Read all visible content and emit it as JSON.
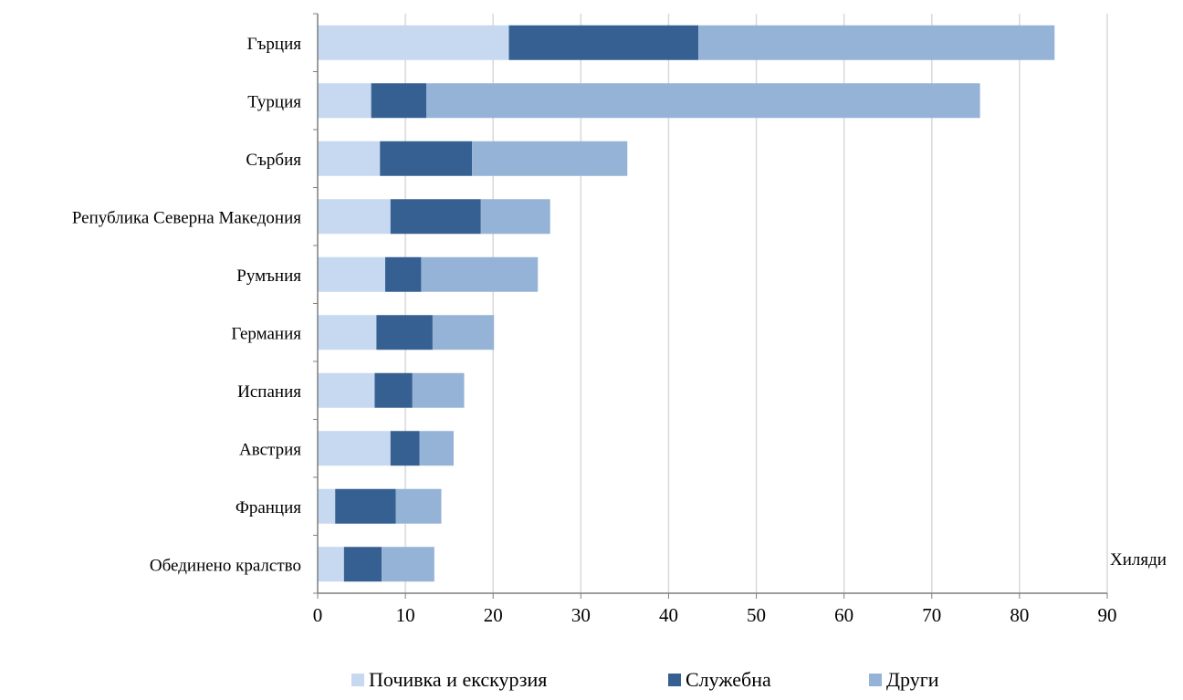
{
  "chart_data": {
    "type": "bar",
    "orientation": "horizontal",
    "stacked": true,
    "categories": [
      "Гърция",
      "Турция",
      "Сърбия",
      "Република Северна Македония",
      "Румъния",
      "Германия",
      "Испания",
      "Австрия",
      "Франция",
      "Обединено  кралство"
    ],
    "series": [
      {
        "name": "Почивка и екскурзия",
        "color": "#c6d9f0",
        "values": [
          21.8,
          6.1,
          7.1,
          8.3,
          7.7,
          6.7,
          6.5,
          8.3,
          2.0,
          3.0
        ]
      },
      {
        "name": "Служебна",
        "color": "#366092",
        "values": [
          21.6,
          6.3,
          10.5,
          10.3,
          4.1,
          6.4,
          4.3,
          3.3,
          6.9,
          4.3
        ]
      },
      {
        "name": "Други",
        "color": "#95b3d7",
        "values": [
          40.6,
          63.1,
          17.7,
          7.9,
          13.3,
          7.0,
          5.9,
          3.9,
          5.2,
          6.0
        ]
      }
    ],
    "xlim": [
      0,
      90
    ],
    "xticks": [
      0,
      10,
      20,
      30,
      40,
      50,
      60,
      70,
      80,
      90
    ],
    "xunit": "Хиляди",
    "grid": "vertical",
    "legend_position": "bottom"
  }
}
